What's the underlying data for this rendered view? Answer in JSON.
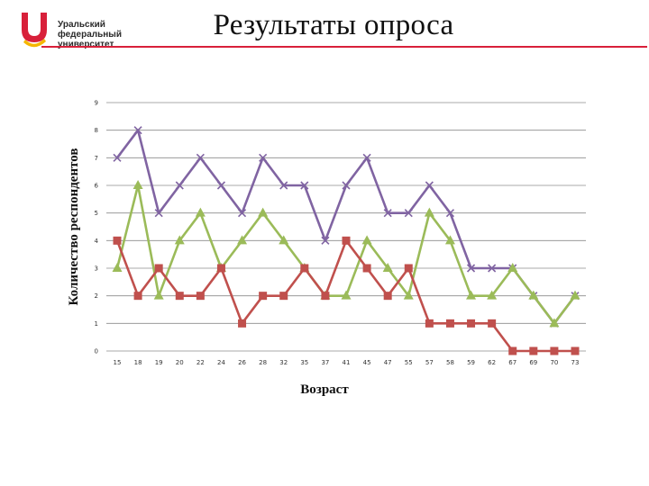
{
  "logo": {
    "lines": [
      "Уральский",
      "федеральный",
      "университет"
    ]
  },
  "header": {
    "title": "Результаты опроса"
  },
  "colors": {
    "purple": "#8064a2",
    "red": "#c0504d",
    "green": "#9bbb59",
    "grid": "#8c8c8c",
    "brand_red": "#d8203a",
    "brand_yellow": "#f5b600"
  },
  "chart_data": {
    "type": "line",
    "title": "",
    "xlabel": "Возраст",
    "ylabel": "Количество респондентов",
    "ylim": [
      0,
      9
    ],
    "yticks": [
      0,
      1,
      2,
      3,
      4,
      5,
      6,
      7,
      8,
      9
    ],
    "grid": true,
    "categories": [
      "15",
      "18",
      "19",
      "20",
      "22",
      "24",
      "26",
      "28",
      "32",
      "35",
      "37",
      "41",
      "45",
      "47",
      "55",
      "57",
      "58",
      "59",
      "62",
      "67",
      "69",
      "70",
      "73"
    ],
    "series": [
      {
        "name": "series-purple",
        "color": "#8064a2",
        "marker": "x",
        "values": [
          7,
          8,
          5,
          6,
          7,
          6,
          5,
          7,
          6,
          6,
          4,
          6,
          7,
          5,
          5,
          6,
          5,
          3,
          3,
          3,
          2,
          1,
          2
        ]
      },
      {
        "name": "series-green",
        "color": "#9bbb59",
        "marker": "triangle",
        "values": [
          3,
          6,
          2,
          4,
          5,
          3,
          4,
          5,
          4,
          3,
          2,
          2,
          4,
          3,
          2,
          5,
          4,
          2,
          2,
          3,
          2,
          1,
          2
        ]
      },
      {
        "name": "series-red",
        "color": "#c0504d",
        "marker": "square",
        "values": [
          4,
          2,
          3,
          2,
          2,
          3,
          1,
          2,
          2,
          3,
          2,
          4,
          3,
          2,
          3,
          1,
          1,
          1,
          1,
          0,
          0,
          0,
          0
        ]
      }
    ]
  }
}
